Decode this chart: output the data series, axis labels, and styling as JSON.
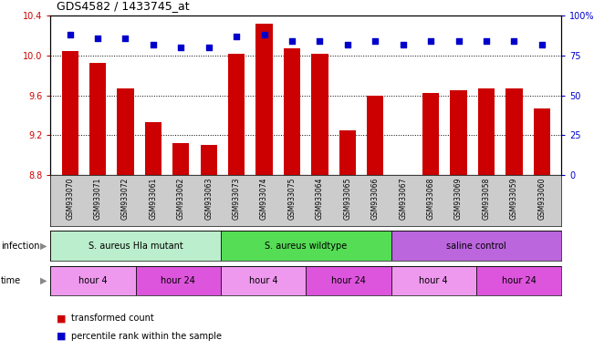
{
  "title": "GDS4582 / 1433745_at",
  "samples": [
    "GSM933070",
    "GSM933071",
    "GSM933072",
    "GSM933061",
    "GSM933062",
    "GSM933063",
    "GSM933073",
    "GSM933074",
    "GSM933075",
    "GSM933064",
    "GSM933065",
    "GSM933066",
    "GSM933067",
    "GSM933068",
    "GSM933069",
    "GSM933058",
    "GSM933059",
    "GSM933060"
  ],
  "bar_values": [
    10.05,
    9.93,
    9.67,
    9.33,
    9.12,
    9.1,
    10.02,
    10.32,
    10.07,
    10.02,
    9.25,
    9.6,
    8.8,
    9.62,
    9.65,
    9.67,
    9.67,
    9.47
  ],
  "dot_values": [
    88,
    86,
    86,
    82,
    80,
    80,
    87,
    88,
    84,
    84,
    82,
    84,
    82,
    84,
    84,
    84,
    84,
    82
  ],
  "ylim": [
    8.8,
    10.4
  ],
  "yticks": [
    8.8,
    9.2,
    9.6,
    10.0,
    10.4
  ],
  "right_ylim": [
    0,
    100
  ],
  "right_yticks": [
    0,
    25,
    50,
    75,
    100
  ],
  "bar_color": "#cc0000",
  "dot_color": "#0000cc",
  "infection_groups": [
    {
      "label": "S. aureus Hla mutant",
      "start": 0,
      "end": 6,
      "color": "#bbeecc"
    },
    {
      "label": "S. aureus wildtype",
      "start": 6,
      "end": 12,
      "color": "#55dd55"
    },
    {
      "label": "saline control",
      "start": 12,
      "end": 18,
      "color": "#bb66dd"
    }
  ],
  "time_groups": [
    {
      "label": "hour 4",
      "start": 0,
      "end": 3,
      "color": "#ee99ee"
    },
    {
      "label": "hour 24",
      "start": 3,
      "end": 6,
      "color": "#dd55dd"
    },
    {
      "label": "hour 4",
      "start": 6,
      "end": 9,
      "color": "#ee99ee"
    },
    {
      "label": "hour 24",
      "start": 9,
      "end": 12,
      "color": "#dd55dd"
    },
    {
      "label": "hour 4",
      "start": 12,
      "end": 15,
      "color": "#ee99ee"
    },
    {
      "label": "hour 24",
      "start": 15,
      "end": 18,
      "color": "#dd55dd"
    }
  ],
  "legend_items": [
    {
      "label": "transformed count",
      "color": "#cc0000"
    },
    {
      "label": "percentile rank within the sample",
      "color": "#0000cc"
    }
  ],
  "sample_label_bg": "#cccccc",
  "label_infection": "infection",
  "label_time": "time"
}
